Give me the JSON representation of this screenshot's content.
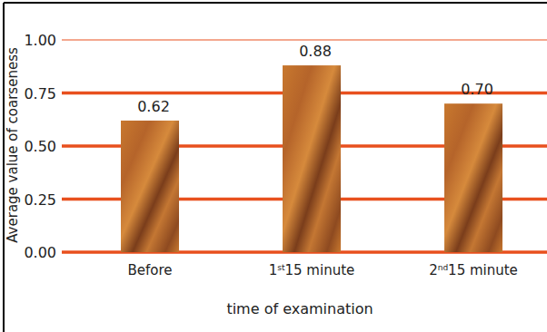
{
  "chart_data": {
    "type": "bar",
    "x_label": "time of examination",
    "y_label": "Average value of coarseness",
    "categories": [
      "Before",
      "1st15 minute",
      "2nd15 minute"
    ],
    "values": [
      0.62,
      0.88,
      0.7
    ],
    "value_labels": [
      "0.62",
      "0.88",
      "0.70"
    ],
    "data_labels": true,
    "color": "#c8782e",
    "ylim": [
      0,
      1
    ],
    "yticks": [
      {
        "value": 0,
        "label": "0.00"
      },
      {
        "value": 0.25,
        "label": "0.25"
      },
      {
        "value": 0.5,
        "label": "0.50"
      },
      {
        "value": 0.75,
        "label": "0.75"
      },
      {
        "value": 1,
        "label": "1.00"
      }
    ],
    "grid": true
  }
}
